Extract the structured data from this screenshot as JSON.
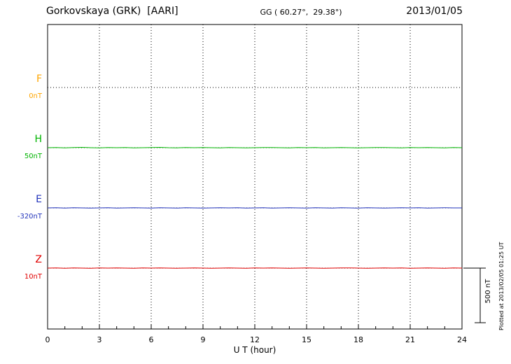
{
  "chart_data": {
    "type": "line",
    "station": "Gorkovskaya (GRK)  [AARI]",
    "coordinates": "GG ( 60.27°,  29.38°)",
    "date": "2013/01/05",
    "xlabel": "U T (hour)",
    "xlim": [
      0,
      24
    ],
    "x_ticks": [
      0,
      3,
      6,
      9,
      12,
      15,
      18,
      21,
      24
    ],
    "x_step_hours": 0.5,
    "grid": true,
    "scale_bar_nT": 500,
    "scale_bar_label": "500 nT",
    "footnote": "Plotted at 2013/02/05 01:25 UT",
    "series": [
      {
        "name": "F",
        "baseline_label": "0nT",
        "baseline": 0,
        "color": "#FFA500",
        "values": []
      },
      {
        "name": "H",
        "baseline_label": "50nT",
        "baseline": 50,
        "color": "#00B400",
        "values": [
          50,
          52,
          49,
          51,
          53,
          50,
          48,
          51,
          50,
          52,
          49,
          50,
          51,
          53,
          50,
          49,
          51,
          50,
          52,
          50,
          49,
          51,
          50,
          48,
          50,
          51,
          52,
          50,
          49,
          51,
          50,
          52,
          49,
          50,
          51,
          50,
          48,
          50,
          52,
          51,
          50,
          49,
          51,
          50,
          52,
          50,
          49,
          51,
          50
        ]
      },
      {
        "name": "E",
        "baseline_label": "-320nT",
        "baseline": -320,
        "color": "#2233BB",
        "values": [
          -320,
          -318,
          -321,
          -319,
          -320,
          -322,
          -320,
          -319,
          -321,
          -320,
          -318,
          -320,
          -321,
          -319,
          -320,
          -322,
          -319,
          -320,
          -321,
          -320,
          -318,
          -320,
          -319,
          -321,
          -320,
          -319,
          -322,
          -320,
          -318,
          -320,
          -321,
          -319,
          -320,
          -321,
          -318,
          -320,
          -322,
          -319,
          -320,
          -321,
          -320,
          -318,
          -320,
          -319,
          -321,
          -320,
          -319,
          -320,
          -320
        ]
      },
      {
        "name": "Z",
        "baseline_label": "10nT",
        "baseline": 10,
        "color": "#E00000",
        "values": [
          10,
          12,
          9,
          11,
          10,
          8,
          11,
          10,
          12,
          10,
          9,
          11,
          10,
          12,
          10,
          9,
          10,
          11,
          10,
          8,
          10,
          12,
          10,
          9,
          11,
          10,
          12,
          10,
          9,
          10,
          11,
          10,
          8,
          10,
          11,
          12,
          10,
          9,
          10,
          11,
          10,
          12,
          9,
          10,
          11,
          10,
          9,
          11,
          10
        ]
      }
    ]
  }
}
